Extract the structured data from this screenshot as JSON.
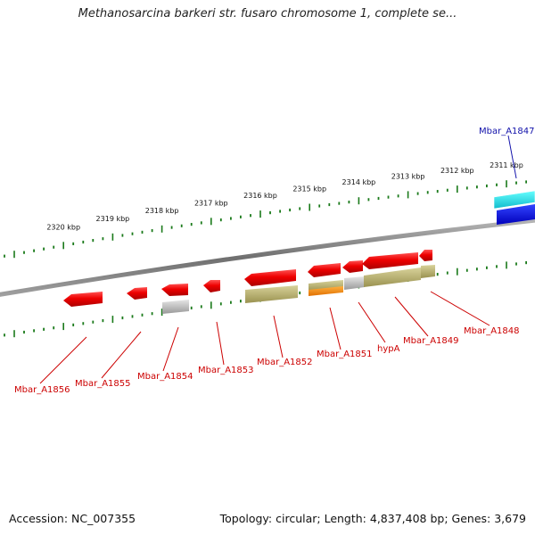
{
  "title": "Methanosarcina barkeri str. fusaro chromosome 1, complete se...",
  "footer": {
    "accession": "Accession: NC_007355",
    "summary": "Topology: circular; Length: 4,837,408 bp; Genes: 3,679"
  },
  "colors": {
    "backbone": "#808080",
    "tick": "#1a7a1a",
    "plus_strand_gene": "#ee1111",
    "minus_strand_gene": "#1111dd",
    "gene_label_red": "#cc0000",
    "gene_label_blue": "#1111aa",
    "cds_olive": "#b2aa66",
    "cds_grey": "#b8b8b8",
    "cds_orange": "#ff8c00",
    "cyan": "#22dddd"
  },
  "scale_labels": [
    "2311 kbp",
    "2312 kbp",
    "2313 kbp",
    "2314 kbp",
    "2315 kbp",
    "2316 kbp",
    "2317 kbp",
    "2318 kbp",
    "2319 kbp",
    "2320 kbp"
  ],
  "genes": [
    {
      "id": "Mbar_A1847",
      "strand": "minus",
      "color": "blue"
    },
    {
      "id": "Mbar_A1848",
      "strand": "plus",
      "color": "red"
    },
    {
      "id": "Mbar_A1849",
      "strand": "plus",
      "color": "red"
    },
    {
      "id": "hypA",
      "strand": "plus",
      "color": "red"
    },
    {
      "id": "Mbar_A1851",
      "strand": "plus",
      "color": "red"
    },
    {
      "id": "Mbar_A1852",
      "strand": "plus",
      "color": "red"
    },
    {
      "id": "Mbar_A1853",
      "strand": "plus",
      "color": "red"
    },
    {
      "id": "Mbar_A1854",
      "strand": "plus",
      "color": "red"
    },
    {
      "id": "Mbar_A1855",
      "strand": "plus",
      "color": "red"
    },
    {
      "id": "Mbar_A1856",
      "strand": "plus",
      "color": "red"
    }
  ]
}
